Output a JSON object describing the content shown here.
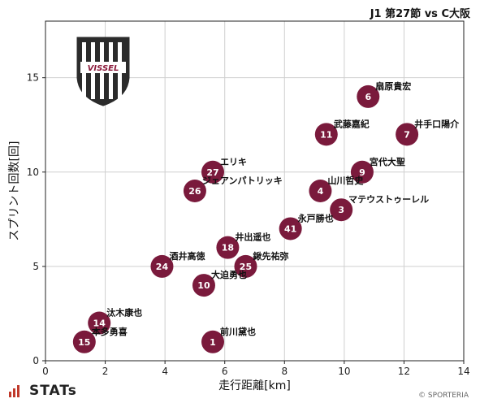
{
  "header": {
    "title": "J1 第27節 vs C大阪"
  },
  "footer": {
    "brand": "STATs",
    "copyright": "© SPORTERIA"
  },
  "logo": {
    "text": "VISSEL",
    "color": "#8b1a3b"
  },
  "chart_data": {
    "type": "scatter",
    "xlabel": "走行距離[km]",
    "ylabel": "スプリント回数[回]",
    "xlim": [
      0,
      14
    ],
    "ylim": [
      0,
      18
    ],
    "xticks": [
      0,
      2,
      4,
      6,
      8,
      10,
      12,
      14
    ],
    "yticks": [
      0,
      5,
      10,
      15
    ],
    "grid": true,
    "marker_color": "#7a1a3c",
    "points": [
      {
        "number": "6",
        "name": "扇原貴宏",
        "x": 10.8,
        "y": 14
      },
      {
        "number": "11",
        "name": "武藤嘉紀",
        "x": 9.4,
        "y": 12
      },
      {
        "number": "7",
        "name": "井手口陽介",
        "x": 12.1,
        "y": 12
      },
      {
        "number": "27",
        "name": "エリキ",
        "x": 5.6,
        "y": 10
      },
      {
        "number": "9",
        "name": "宮代大聖",
        "x": 10.6,
        "y": 10
      },
      {
        "number": "26",
        "name": "ジェアンパトリッキ",
        "x": 5.0,
        "y": 9
      },
      {
        "number": "4",
        "name": "山川哲史",
        "x": 9.2,
        "y": 9
      },
      {
        "number": "3",
        "name": "マテウストゥーレル",
        "x": 9.9,
        "y": 8
      },
      {
        "number": "41",
        "name": "永戸勝也",
        "x": 8.2,
        "y": 7
      },
      {
        "number": "18",
        "name": "井出遥也",
        "x": 6.1,
        "y": 6
      },
      {
        "number": "24",
        "name": "酒井高徳",
        "x": 3.9,
        "y": 5
      },
      {
        "number": "25",
        "name": "鍬先祐弥",
        "x": 6.7,
        "y": 5
      },
      {
        "number": "10",
        "name": "大迫勇也",
        "x": 5.3,
        "y": 4
      },
      {
        "number": "14",
        "name": "汰木康也",
        "x": 1.8,
        "y": 2
      },
      {
        "number": "15",
        "name": "本多勇喜",
        "x": 1.3,
        "y": 1
      },
      {
        "number": "1",
        "name": "前川黛也",
        "x": 5.6,
        "y": 1
      }
    ]
  }
}
